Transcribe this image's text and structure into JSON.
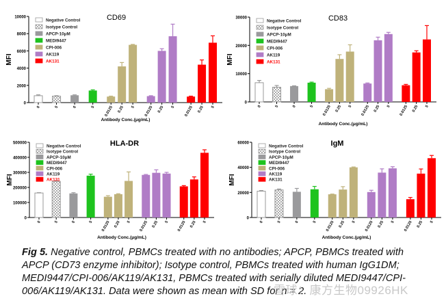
{
  "legend": [
    {
      "label": "Negative Control",
      "color": "#ffffff",
      "pattern": "outline"
    },
    {
      "label": "Isotype Control",
      "color": "#cccccc",
      "pattern": "checker"
    },
    {
      "label": "APCP-10μM",
      "color": "#9a9a9c",
      "pattern": "solid"
    },
    {
      "label": "MEDI9447",
      "color": "#1ec31e",
      "pattern": "solid"
    },
    {
      "label": "CPI-006",
      "color": "#bfb27a",
      "pattern": "solid"
    },
    {
      "label": "AK119",
      "color": "#b07cc6",
      "pattern": "solid"
    },
    {
      "label": "AK131",
      "color": "#ff0000",
      "pattern": "solid"
    }
  ],
  "chart_data": [
    {
      "type": "bar",
      "title": "CD69",
      "ylabel": "MFI",
      "xlabel": "Antibody Conc.(μg/mL)",
      "ylim": [
        0,
        10000
      ],
      "yticks": [
        "0",
        "2000",
        "4000",
        "6000",
        "8000",
        "10000"
      ],
      "categories": [
        "0",
        "5",
        "0",
        "5",
        "0.0125",
        "0.25",
        "5",
        "0.0125",
        "0.25",
        "5",
        "0.0125",
        "0.25",
        "5"
      ],
      "groups": [
        0,
        1,
        2,
        3,
        4,
        4,
        4,
        5,
        5,
        5,
        6,
        6,
        6
      ],
      "values": [
        800,
        750,
        850,
        1400,
        700,
        4200,
        6700,
        750,
        6000,
        7700,
        700,
        4400,
        6950
      ],
      "sd": [
        100,
        50,
        50,
        80,
        50,
        450,
        50,
        50,
        250,
        1400,
        50,
        550,
        800
      ],
      "legend_red_label": true
    },
    {
      "type": "bar",
      "title": "CD83",
      "ylabel": "MFI",
      "xlabel": "Antibody Conc.(μg/mL)",
      "ylim": [
        0,
        30000
      ],
      "yticks": [
        "0",
        "10000",
        "20000",
        "30000"
      ],
      "categories": [
        "0",
        "5",
        "0",
        "5",
        "0.0125",
        "0.25",
        "5",
        "0.0125",
        "0.25",
        "5",
        "0.0125",
        "0.25",
        "5"
      ],
      "groups": [
        0,
        1,
        2,
        3,
        4,
        4,
        4,
        5,
        5,
        5,
        6,
        6,
        6
      ],
      "values": [
        6800,
        5200,
        5600,
        6800,
        4500,
        15200,
        17800,
        6500,
        21800,
        24000,
        5900,
        17500,
        22100
      ],
      "sd": [
        800,
        600,
        100,
        200,
        300,
        1500,
        2400,
        200,
        1100,
        600,
        300,
        600,
        4900
      ],
      "legend_red_label": true
    },
    {
      "type": "bar",
      "title": "HLA-DR",
      "ylabel": "MFI",
      "xlabel": "Antibody Conc.(μg/mL)",
      "ylim": [
        0,
        500000
      ],
      "yticks": [
        "0",
        "100000",
        "200000",
        "300000",
        "400000",
        "500000"
      ],
      "categories": [
        "0",
        "5",
        "0",
        "5",
        "0.0125",
        "0.25",
        "5",
        "0.0125",
        "0.25",
        "5",
        "0.0125",
        "0.25",
        "5"
      ],
      "groups": [
        0,
        1,
        2,
        3,
        4,
        4,
        4,
        5,
        5,
        5,
        6,
        6,
        6
      ],
      "values": [
        163000,
        240000,
        160000,
        278000,
        138000,
        155000,
        243000,
        283000,
        297000,
        292000,
        207000,
        253000,
        430000
      ],
      "sd": [
        2000,
        5000,
        5000,
        10000,
        7000,
        3000,
        60000,
        3000,
        20000,
        8000,
        5000,
        17000,
        20000
      ],
      "legend_red_label": true
    },
    {
      "type": "bar",
      "title": "IgM",
      "ylabel": "MFI",
      "xlabel": "Antibody Conc.(μg/mL)",
      "ylim": [
        0,
        60000
      ],
      "yticks": [
        "0",
        "20000",
        "40000",
        "60000"
      ],
      "categories": [
        "0",
        "5",
        "0",
        "5",
        "0.0125",
        "0.25",
        "5",
        "0.0125",
        "0.25",
        "5",
        "0.0125",
        "0.25",
        "5"
      ],
      "groups": [
        0,
        1,
        2,
        3,
        4,
        4,
        4,
        5,
        5,
        5,
        6,
        6,
        6
      ],
      "values": [
        21000,
        22000,
        20500,
        22500,
        18500,
        22300,
        40000,
        20300,
        35800,
        39200,
        14600,
        35000,
        47300
      ],
      "sd": [
        500,
        700,
        2700,
        2300,
        200,
        2300,
        300,
        1400,
        3000,
        1300,
        1400,
        3700,
        2200
      ],
      "legend_red_label": false
    }
  ],
  "caption": {
    "label": "Fig 5.",
    "text": " Negative control, PBMCs treated with no antibodies; APCP, PBMCs treated with APCP (CD73 enzyme inhibitor); Isotype control, PBMCs treated with human IgG1DM; MEDI9447/CPI-006/AK119/AK131, PBMCs treated with serially diluted MEDI9447/CPI-006/AK119/AK131. Data were shown as mean with SD for n = 2."
  },
  "watermark": "雪球：康方生物09926HK"
}
